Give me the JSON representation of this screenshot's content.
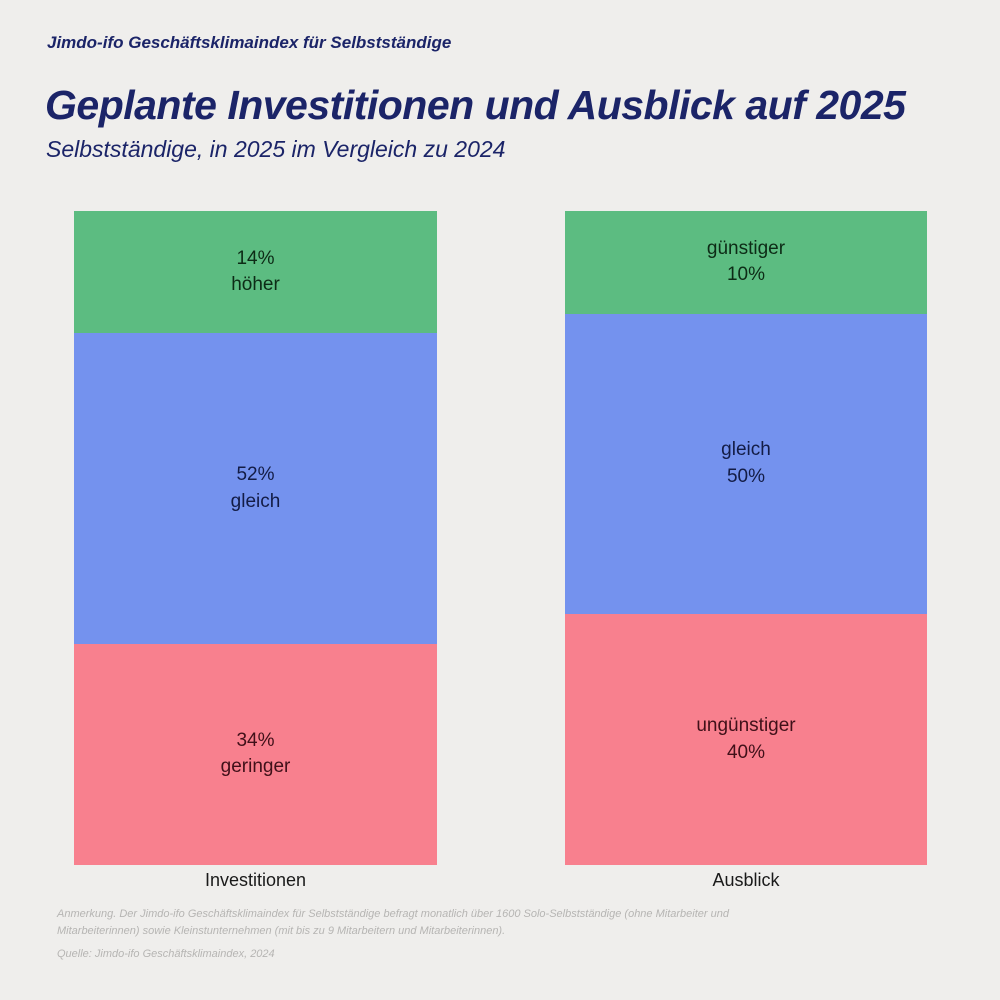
{
  "header": {
    "kicker": "Jimdo-ifo Geschäftsklimaindex für Selbstständige",
    "title": "Geplante Investitionen und Ausblick auf 2025",
    "subtitle": "Selbstständige, in 2025 im Vergleich zu 2024"
  },
  "colors": {
    "background": "#efeeec",
    "heading": "#1b2468",
    "green": "#5cbc81",
    "blue": "#7492ee",
    "pink": "#f8808e",
    "green_text": "#0d2b16",
    "blue_text": "#131c45",
    "pink_text": "#401019",
    "footnote": "#b6b5b3"
  },
  "chart_data": {
    "type": "bar",
    "subtype": "stacked-100-percent-column",
    "title": "Geplante Investitionen und Ausblick auf 2025",
    "xlabel": "",
    "ylabel": "",
    "ylim": [
      0,
      100
    ],
    "grid": false,
    "legend": "none",
    "categories": [
      "Investitionen",
      "Ausblick"
    ],
    "series": [
      {
        "name": "höher / günstiger",
        "color_key": "green",
        "values": [
          14,
          10
        ]
      },
      {
        "name": "gleich",
        "color_key": "blue",
        "values": [
          52,
          50
        ]
      },
      {
        "name": "geringer / ungünstiger",
        "color_key": "pink",
        "values": [
          34,
          40
        ]
      }
    ],
    "bars": [
      {
        "category": "Investitionen",
        "segments": [
          {
            "value": 14,
            "color_key": "green",
            "label_lines": [
              "14%",
              "höher"
            ]
          },
          {
            "value": 52,
            "color_key": "blue",
            "label_lines": [
              "52%",
              "gleich"
            ]
          },
          {
            "value": 34,
            "color_key": "pink",
            "label_lines": [
              "34%",
              "geringer"
            ]
          }
        ]
      },
      {
        "category": "Ausblick",
        "segments": [
          {
            "value": 10,
            "color_key": "green",
            "label_lines": [
              "günstiger",
              "10%"
            ]
          },
          {
            "value": 50,
            "color_key": "blue",
            "label_lines": [
              "gleich",
              "50%"
            ]
          },
          {
            "value": 40,
            "color_key": "pink",
            "label_lines": [
              "ungünstiger",
              "40%"
            ]
          }
        ]
      }
    ]
  },
  "footnote": {
    "note": "Anmerkung. Der Jimdo-ifo Geschäftsklimaindex für Selbstständige befragt monatlich über 1600 Solo-Selbstständige (ohne Mitarbeiter und Mitarbeiterinnen) sowie Kleinstunternehmen (mit bis zu 9 Mitarbeitern und Mitarbeiterinnen).",
    "source": "Quelle: Jimdo-ifo Geschäftsklimaindex, 2024"
  }
}
